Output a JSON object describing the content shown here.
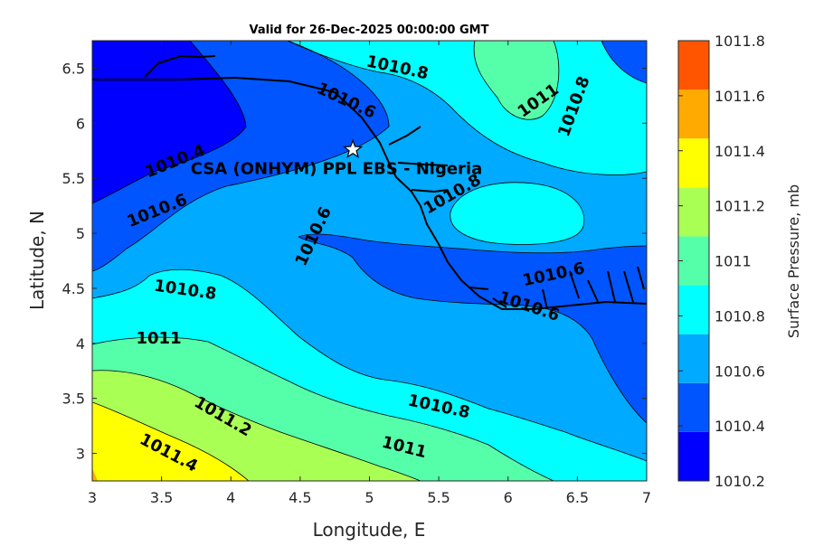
{
  "chart_data": {
    "type": "contour",
    "title": "Valid for 26-Dec-2025 00:00:00 GMT",
    "xlabel": "Longitude, E",
    "ylabel": "Latitude, N",
    "xlim": [
      3,
      7
    ],
    "ylim": [
      2.75,
      6.75
    ],
    "x_ticks": [
      "3",
      "3.5",
      "4",
      "4.5",
      "5",
      "5.5",
      "6",
      "6.5",
      "7"
    ],
    "y_ticks": [
      "3",
      "3.5",
      "4",
      "4.5",
      "5",
      "5.5",
      "6",
      "6.5"
    ],
    "colorbar": {
      "label": "Surface Pressure, mb",
      "levels": [
        "1010.2",
        "1010.4",
        "1010.6",
        "1010.8",
        "1011",
        "1011.2",
        "1011.4",
        "1011.6",
        "1011.8"
      ],
      "colors": [
        "#0000ff",
        "#0055ff",
        "#00aaff",
        "#00ffff",
        "#55ffaa",
        "#aaff55",
        "#ffff00",
        "#ffaa00",
        "#ff5500"
      ]
    },
    "contour_labels": [
      {
        "text": "1010.8",
        "lon": 5.2,
        "lat": 6.5
      },
      {
        "text": "1010.6",
        "lon": 4.83,
        "lat": 6.2
      },
      {
        "text": "1011",
        "lon": 6.22,
        "lat": 6.2
      },
      {
        "text": "1010.8",
        "lon": 6.48,
        "lat": 6.15
      },
      {
        "text": "1010.4",
        "lon": 3.6,
        "lat": 5.65
      },
      {
        "text": "1010.6",
        "lon": 3.47,
        "lat": 5.2
      },
      {
        "text": "1010.8",
        "lon": 5.6,
        "lat": 5.35
      },
      {
        "text": "1010.6",
        "lon": 4.6,
        "lat": 4.97
      },
      {
        "text": "1010.8",
        "lon": 3.67,
        "lat": 4.48
      },
      {
        "text": "1010.6",
        "lon": 6.33,
        "lat": 4.62
      },
      {
        "text": "1010.6",
        "lon": 6.15,
        "lat": 4.33
      },
      {
        "text": "1011",
        "lon": 3.48,
        "lat": 4.04
      },
      {
        "text": "1010.8",
        "lon": 5.5,
        "lat": 3.42
      },
      {
        "text": "1011.2",
        "lon": 3.94,
        "lat": 3.33
      },
      {
        "text": "1011",
        "lon": 5.25,
        "lat": 3.05
      },
      {
        "text": "1011.4",
        "lon": 3.55,
        "lat": 3.0
      }
    ],
    "site_marker": {
      "label": "CSA (ONHYM) PPL EBS - Nigeria",
      "lon": 4.88,
      "lat": 5.76
    }
  }
}
